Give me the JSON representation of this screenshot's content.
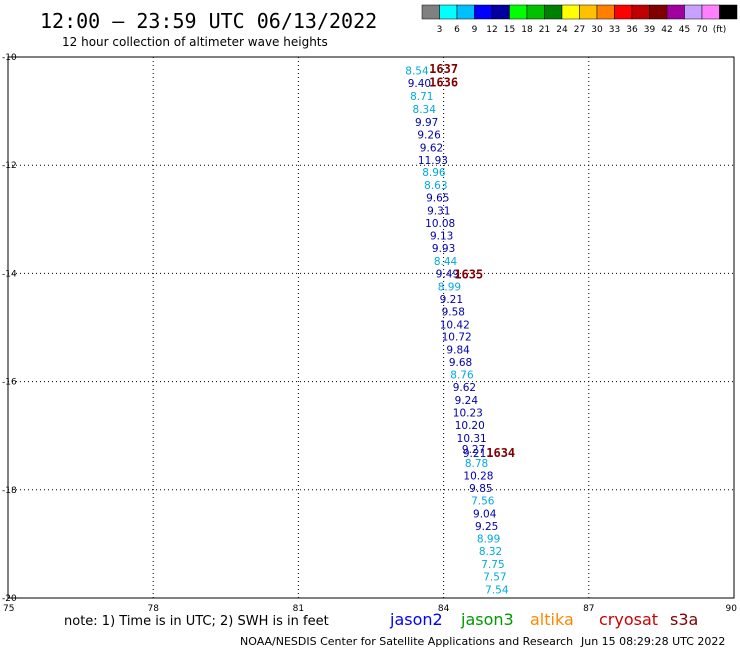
{
  "chart_data": {
    "type": "scatter",
    "title": "12:00 – 23:59 UTC 06/13/2022",
    "subtitle": "12 hour collection of altimeter wave heights",
    "xlabel": "",
    "ylabel": "",
    "xlim": [
      75,
      90
    ],
    "ylim": [
      -20,
      -10
    ],
    "x_ticks": [
      75,
      78,
      81,
      84,
      87,
      90
    ],
    "x_tick_labels": [
      "75",
      "78",
      "81",
      "84",
      "87",
      "90"
    ],
    "y_ticks": [
      -10,
      -12,
      -14,
      -16,
      -18,
      -20
    ],
    "y_tick_labels": [
      "-10",
      "-12",
      "-14",
      "-16",
      "-18",
      "-20"
    ],
    "grid": true,
    "colorbar": {
      "labels": [
        "3",
        "6",
        "9",
        "12",
        "15",
        "18",
        "21",
        "24",
        "27",
        "30",
        "33",
        "36",
        "39",
        "42",
        "45",
        "70",
        "(ft)"
      ],
      "colors": [
        "#808080",
        "#00ffff",
        "#00c0ff",
        "#0000ff",
        "#0000a0",
        "#00ff00",
        "#00c000",
        "#008000",
        "#ffff00",
        "#ffc000",
        "#ff8000",
        "#ff0000",
        "#c00000",
        "#800000",
        "#a000a0",
        "#c8a0ff",
        "#ff80ff",
        "#000000"
      ]
    },
    "series": [
      {
        "name": "jason2",
        "color": "#0000cc",
        "points": [
          {
            "x": 83.45,
            "y": -10.25,
            "label": "8.54",
            "color": "#00aadd"
          },
          {
            "x": 83.5,
            "y": -10.48,
            "label": "9.40",
            "color": "#0000aa"
          },
          {
            "x": 83.55,
            "y": -10.72,
            "label": "8.71",
            "color": "#00aadd"
          },
          {
            "x": 83.6,
            "y": -10.96,
            "label": "8.34",
            "color": "#00aadd"
          },
          {
            "x": 83.65,
            "y": -11.2,
            "label": "9.97",
            "color": "#0000aa"
          },
          {
            "x": 83.7,
            "y": -11.43,
            "label": "9.26",
            "color": "#0000aa"
          },
          {
            "x": 83.75,
            "y": -11.67,
            "label": "9.62",
            "color": "#0000aa"
          },
          {
            "x": 83.78,
            "y": -11.9,
            "label": "11.93",
            "color": "#0000aa"
          },
          {
            "x": 83.8,
            "y": -12.13,
            "label": "8.96",
            "color": "#00aadd"
          },
          {
            "x": 83.84,
            "y": -12.37,
            "label": "8.63",
            "color": "#00aadd"
          },
          {
            "x": 83.88,
            "y": -12.6,
            "label": "9.65",
            "color": "#0000aa"
          },
          {
            "x": 83.9,
            "y": -12.84,
            "label": "9.31",
            "color": "#0000aa"
          },
          {
            "x": 83.93,
            "y": -13.07,
            "label": "10.08",
            "color": "#0000aa"
          },
          {
            "x": 83.96,
            "y": -13.3,
            "label": "9.13",
            "color": "#0000aa"
          },
          {
            "x": 84.0,
            "y": -13.53,
            "label": "9.93",
            "color": "#0000aa"
          },
          {
            "x": 84.04,
            "y": -13.77,
            "label": "8.44",
            "color": "#00aadd"
          },
          {
            "x": 84.08,
            "y": -14.0,
            "label": "9.49",
            "color": "#0000aa"
          },
          {
            "x": 84.12,
            "y": -14.24,
            "label": "8.99",
            "color": "#00aadd"
          },
          {
            "x": 84.16,
            "y": -14.47,
            "label": "9.21",
            "color": "#0000aa"
          },
          {
            "x": 84.2,
            "y": -14.7,
            "label": "9.58",
            "color": "#0000aa"
          },
          {
            "x": 84.23,
            "y": -14.94,
            "label": "10.42",
            "color": "#0000aa"
          },
          {
            "x": 84.27,
            "y": -15.17,
            "label": "10.72",
            "color": "#0000aa"
          },
          {
            "x": 84.3,
            "y": -15.41,
            "label": "9.84",
            "color": "#0000aa"
          },
          {
            "x": 84.35,
            "y": -15.64,
            "label": "9.68",
            "color": "#0000aa"
          },
          {
            "x": 84.38,
            "y": -15.87,
            "label": "8.76",
            "color": "#00aadd"
          },
          {
            "x": 84.43,
            "y": -16.1,
            "label": "9.62",
            "color": "#0000aa"
          },
          {
            "x": 84.47,
            "y": -16.34,
            "label": "9.24",
            "color": "#0000aa"
          },
          {
            "x": 84.5,
            "y": -16.57,
            "label": "10.23",
            "color": "#0000aa"
          },
          {
            "x": 84.54,
            "y": -16.8,
            "label": "10.20",
            "color": "#0000aa"
          },
          {
            "x": 84.58,
            "y": -17.04,
            "label": "10.31",
            "color": "#0000aa"
          },
          {
            "x": 84.62,
            "y": -17.25,
            "label": "9.27",
            "color": "#0000aa"
          },
          {
            "x": 84.64,
            "y": -17.32,
            "label": "9.21",
            "color": "#0000aa"
          },
          {
            "x": 84.68,
            "y": -17.5,
            "label": "8.78",
            "color": "#00aadd"
          },
          {
            "x": 84.72,
            "y": -17.74,
            "label": "10.28",
            "color": "#0000aa"
          },
          {
            "x": 84.77,
            "y": -17.97,
            "label": "9.85",
            "color": "#0000aa"
          },
          {
            "x": 84.81,
            "y": -18.2,
            "label": "7.56",
            "color": "#00aadd"
          },
          {
            "x": 84.85,
            "y": -18.44,
            "label": "9.04",
            "color": "#0000aa"
          },
          {
            "x": 84.89,
            "y": -18.67,
            "label": "9.25",
            "color": "#0000aa"
          },
          {
            "x": 84.93,
            "y": -18.9,
            "label": "8.99",
            "color": "#00aadd"
          },
          {
            "x": 84.97,
            "y": -19.13,
            "label": "8.32",
            "color": "#00aadd"
          },
          {
            "x": 85.02,
            "y": -19.37,
            "label": "7.75",
            "color": "#00aadd"
          },
          {
            "x": 85.06,
            "y": -19.6,
            "label": "7.57",
            "color": "#00aadd"
          },
          {
            "x": 85.1,
            "y": -19.84,
            "label": "7.54",
            "color": "#00aadd"
          }
        ]
      }
    ],
    "time_labels": [
      {
        "x": 84.0,
        "y": -10.2,
        "label": "1637"
      },
      {
        "x": 84.0,
        "y": -10.45,
        "label": "1636"
      },
      {
        "x": 84.52,
        "y": -14.0,
        "label": "1635"
      },
      {
        "x": 85.18,
        "y": -17.3,
        "label": "1634"
      }
    ],
    "time_label_color": "#800000",
    "legend": {
      "placement": "bottom",
      "items": [
        {
          "name": "jason2",
          "color": "#0000ff"
        },
        {
          "name": "jason3",
          "color": "#009900"
        },
        {
          "name": "altika",
          "color": "#ff8800"
        },
        {
          "name": "cryosat",
          "color": "#cc0000"
        },
        {
          "name": "s3a",
          "color": "#800000"
        }
      ]
    }
  },
  "note": "note: 1) Time is in UTC; 2) SWH is in feet",
  "footer_credit": "NOAA/NESDIS Center for Satellite Applications and Research",
  "footer_timestamp": "Jun 15 08:29:28 UTC 2022"
}
